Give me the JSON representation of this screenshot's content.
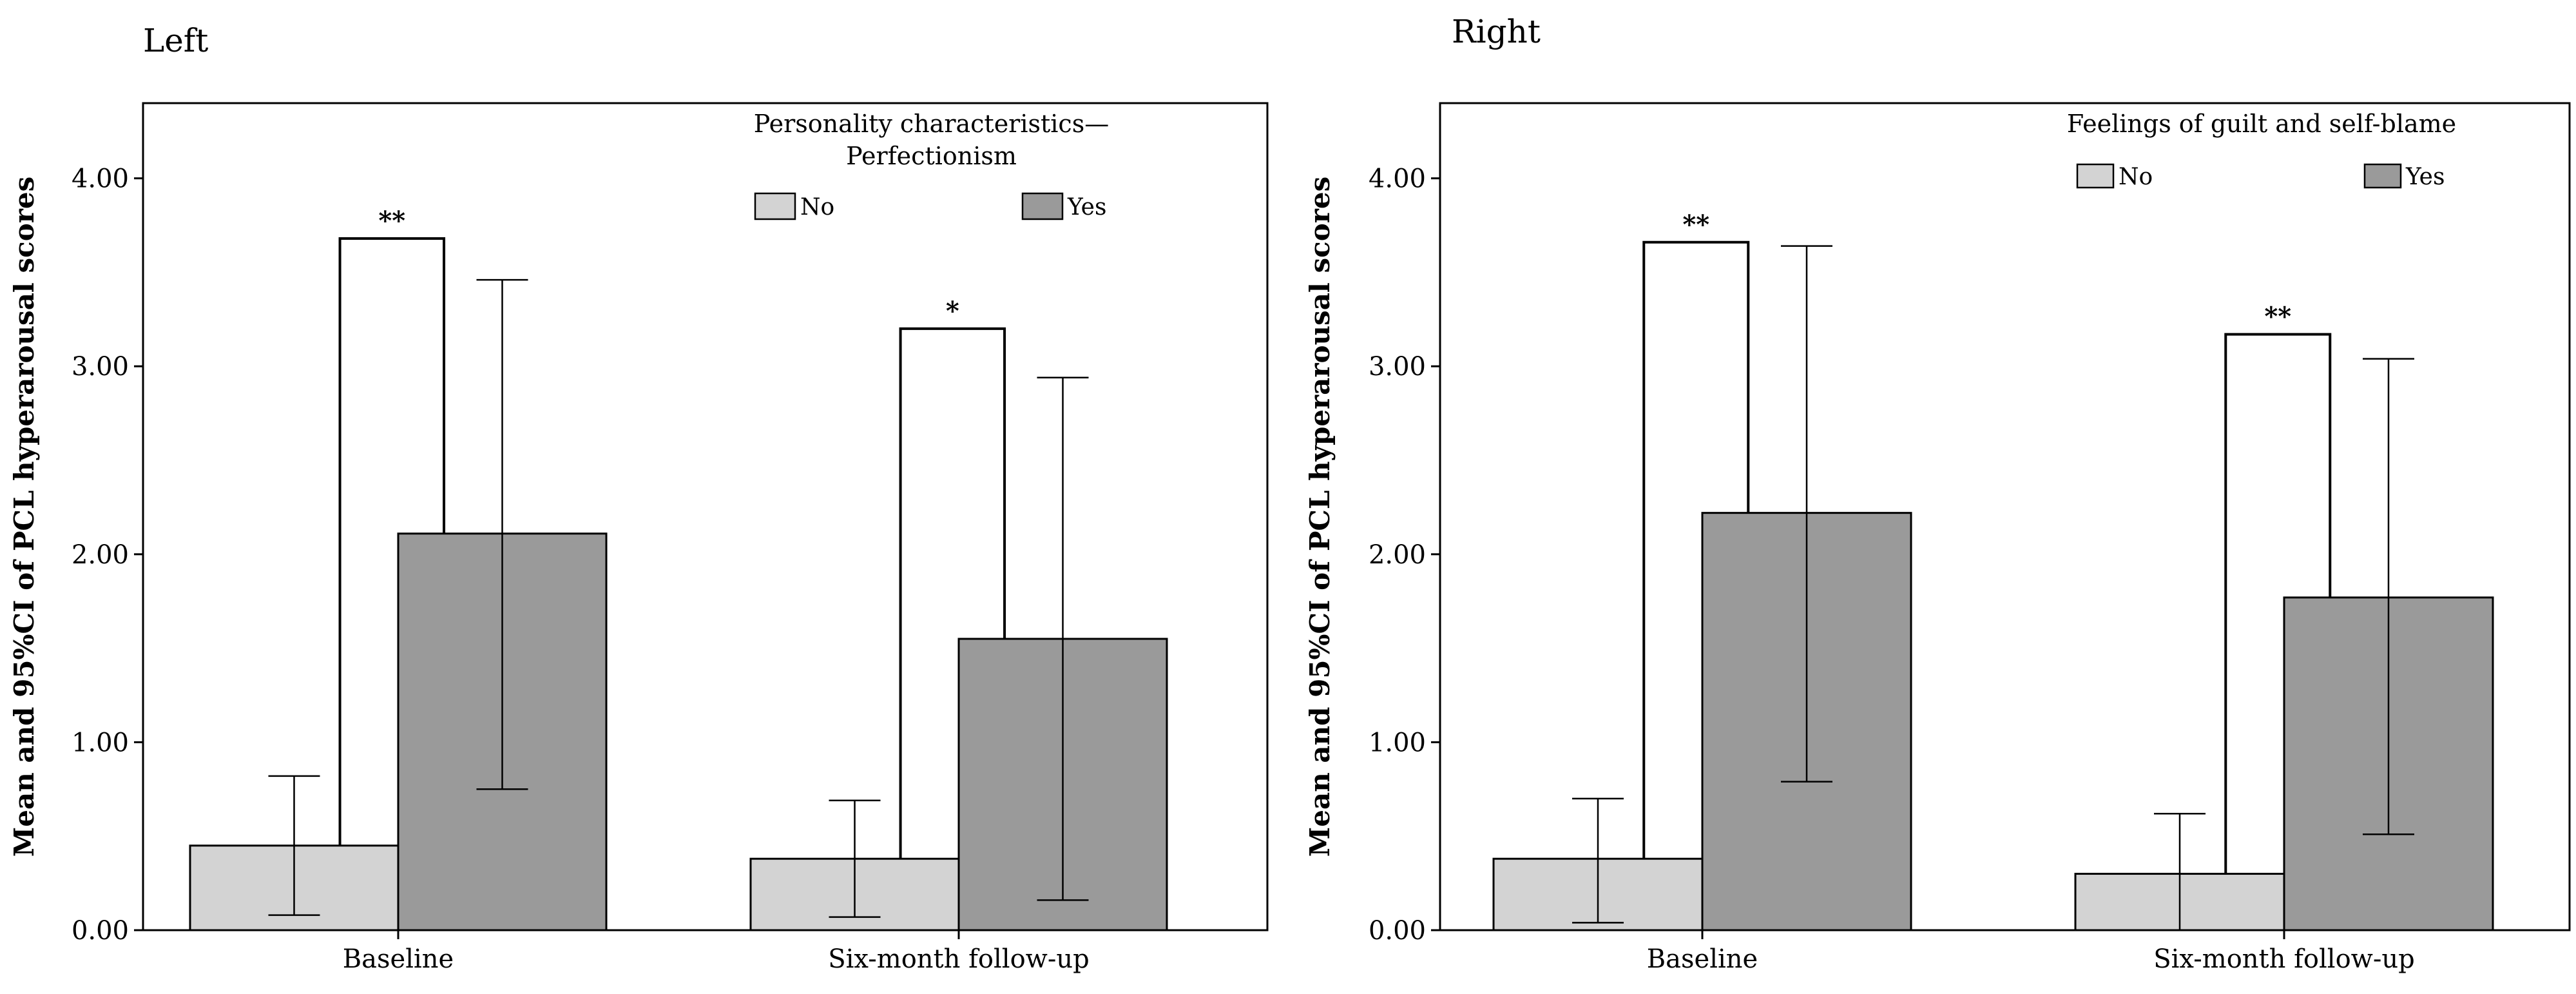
{
  "chart_data": [
    {
      "type": "bar",
      "panel_title": "Left",
      "categories": [
        "Baseline",
        "Six-month follow-up"
      ],
      "ylabel": "Mean and 95%CI of PCL hyperarousal scores",
      "ylim": [
        0,
        4.4
      ],
      "yticks": [
        "0.00",
        "1.00",
        "2.00",
        "3.00",
        "4.00"
      ],
      "legend": {
        "title": "Personality characteristics— Perfectionism",
        "title_lines": [
          "Personality characteristics—",
          "Perfectionism"
        ],
        "placement": "top-right"
      },
      "series": [
        {
          "name": "No",
          "color": "#d3d3d3",
          "values": [
            0.45,
            0.38
          ],
          "ci_low": [
            0.08,
            0.07
          ],
          "ci_high": [
            0.82,
            0.69
          ]
        },
        {
          "name": "Yes",
          "color": "#9a9a9a",
          "values": [
            2.11,
            1.55
          ],
          "ci_low": [
            0.75,
            0.16
          ],
          "ci_high": [
            3.46,
            2.94
          ]
        }
      ],
      "significance": [
        {
          "category": "Baseline",
          "label": "**",
          "bracket_top": 3.68
        },
        {
          "category": "Six-month follow-up",
          "label": "*",
          "bracket_top": 3.2
        }
      ]
    },
    {
      "type": "bar",
      "panel_title": "Right",
      "categories": [
        "Baseline",
        "Six-month follow-up"
      ],
      "ylabel": "Mean and 95%CI of PCL hyperarousal scores",
      "ylim": [
        0,
        4.4
      ],
      "yticks": [
        "0.00",
        "1.00",
        "2.00",
        "3.00",
        "4.00"
      ],
      "legend": {
        "title": "Feelings of guilt and self-blame",
        "title_lines": [
          "Feelings of guilt and self-blame"
        ],
        "placement": "top-right"
      },
      "series": [
        {
          "name": "No",
          "color": "#d3d3d3",
          "values": [
            0.38,
            0.3
          ],
          "ci_low": [
            0.04,
            0.0
          ],
          "ci_high": [
            0.7,
            0.62
          ]
        },
        {
          "name": "Yes",
          "color": "#9a9a9a",
          "values": [
            2.22,
            1.77
          ],
          "ci_low": [
            0.79,
            0.51
          ],
          "ci_high": [
            3.64,
            3.04
          ]
        }
      ],
      "significance": [
        {
          "category": "Baseline",
          "label": "**",
          "bracket_top": 3.66
        },
        {
          "category": "Six-month follow-up",
          "label": "**",
          "bracket_top": 3.17
        }
      ]
    }
  ]
}
